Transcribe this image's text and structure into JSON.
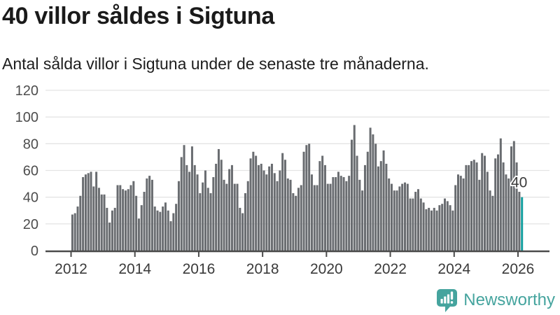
{
  "header": {
    "title": "40 villor såldes i Sigtuna",
    "subtitle": "Antal sålda villor i Sigtuna under de senaste tre månaderna."
  },
  "chart_data": {
    "type": "bar",
    "title": "40 villor såldes i Sigtuna",
    "subtitle": "Antal sålda villor i Sigtuna under de senaste tre månaderna.",
    "unit": "sålda villor (rullande tre månader)",
    "frequency": "monthly",
    "x_start": "2012-01",
    "x_end": "2026-02",
    "grid": "horizontal",
    "legend": "none",
    "ylim": [
      0,
      120
    ],
    "y_ticks": [
      0,
      20,
      40,
      60,
      80,
      100,
      120
    ],
    "x_tick_labels": [
      "2012",
      "2014",
      "2016",
      "2018",
      "2020",
      "2022",
      "2024",
      "2026"
    ],
    "x_tick_month_indices": [
      0,
      24,
      48,
      72,
      96,
      120,
      144,
      168
    ],
    "bar_color": "#696c70",
    "highlight_color": "#149f9f",
    "axis_color": "#4b4b4b",
    "grid_color": "#e4e4e4",
    "label_color": "#4d4d4d",
    "annotation": {
      "text": "40",
      "index": 169,
      "color": "#3a3a3a"
    },
    "values": [
      27,
      28,
      33,
      41,
      55,
      57,
      58,
      59,
      48,
      59,
      47,
      42,
      42,
      32,
      21,
      30,
      32,
      49,
      49,
      46,
      45,
      46,
      49,
      52,
      41,
      24,
      34,
      44,
      54,
      56,
      53,
      33,
      30,
      29,
      33,
      36,
      30,
      22,
      28,
      35,
      52,
      70,
      79,
      64,
      59,
      78,
      64,
      57,
      43,
      51,
      60,
      47,
      43,
      55,
      65,
      76,
      68,
      53,
      50,
      61,
      64,
      50,
      50,
      32,
      28,
      43,
      52,
      69,
      74,
      71,
      64,
      65,
      60,
      57,
      63,
      65,
      58,
      52,
      60,
      73,
      68,
      54,
      53,
      43,
      41,
      47,
      49,
      74,
      79,
      80,
      57,
      49,
      49,
      67,
      71,
      64,
      50,
      50,
      55,
      55,
      59,
      56,
      55,
      52,
      56,
      83,
      94,
      71,
      53,
      45,
      64,
      74,
      92,
      87,
      80,
      63,
      67,
      75,
      65,
      54,
      50,
      45,
      45,
      48,
      50,
      51,
      50,
      39,
      39,
      44,
      46,
      39,
      36,
      31,
      32,
      30,
      32,
      30,
      34,
      35,
      39,
      37,
      34,
      30,
      49,
      57,
      56,
      54,
      64,
      64,
      67,
      68,
      66,
      53,
      73,
      71,
      59,
      45,
      41,
      69,
      72,
      84,
      66,
      57,
      54,
      78,
      82,
      66,
      44,
      40
    ]
  },
  "footer": {
    "brand": "Newsworthy",
    "brand_color": "#45a49e",
    "logo_icon": "newsworthy-chart-bubble-icon"
  }
}
